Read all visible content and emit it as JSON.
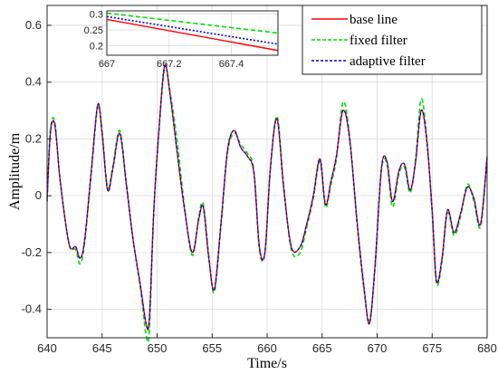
{
  "chart_data": {
    "type": "line",
    "title": "",
    "xlabel": "Time/s",
    "ylabel": "Amplitude/m",
    "xlim": [
      640,
      680
    ],
    "ylim": [
      -0.5,
      0.67
    ],
    "x_ticks": [
      640,
      645,
      650,
      655,
      660,
      665,
      670,
      675,
      680
    ],
    "y_ticks": [
      -0.4,
      -0.2,
      0,
      0.2,
      0.4,
      0.6
    ],
    "x_tick_labels": [
      "640",
      "645",
      "650",
      "655",
      "660",
      "665",
      "670",
      "675",
      "680"
    ],
    "y_tick_labels": [
      "-0.4",
      "-0.2",
      "0",
      "0.2",
      "0.4",
      "0.6"
    ],
    "grid": true,
    "legend_position": "top-right",
    "series": [
      {
        "name": "base line",
        "color": "#ff0000",
        "dash": "solid",
        "x": [
          640,
          640.3,
          640.7,
          641.2,
          642,
          642.6,
          643,
          643.4,
          644,
          644.6,
          645,
          645.5,
          646,
          646.6,
          647.2,
          647.8,
          648.5,
          649,
          649.3,
          649.7,
          650.2,
          650.7,
          651.2,
          651.8,
          652.5,
          653.2,
          653.8,
          654.2,
          654.7,
          655.2,
          655.8,
          656.4,
          657,
          657.6,
          658.2,
          658.8,
          659.3,
          659.8,
          660.3,
          660.9,
          661.5,
          662.2,
          663,
          663.6,
          664.2,
          664.8,
          665.3,
          665.8,
          666.3,
          666.9,
          667.5,
          668.2,
          668.8,
          669.3,
          669.8,
          670.4,
          670.9,
          671.4,
          672,
          672.5,
          673,
          673.5,
          674,
          674.5,
          675,
          675.4,
          675.9,
          676.4,
          677,
          677.6,
          678.2,
          678.8,
          679.4,
          680
        ],
        "y": [
          -0.02,
          0.22,
          0.25,
          0.05,
          -0.17,
          -0.18,
          -0.22,
          -0.16,
          0.08,
          0.32,
          0.22,
          0.02,
          0.1,
          0.22,
          0.04,
          -0.15,
          -0.32,
          -0.45,
          -0.43,
          -0.05,
          0.25,
          0.46,
          0.35,
          0.16,
          -0.05,
          -0.2,
          -0.08,
          -0.04,
          -0.22,
          -0.33,
          -0.1,
          0.16,
          0.23,
          0.17,
          0.14,
          0.08,
          -0.18,
          -0.2,
          0.1,
          0.27,
          0.03,
          -0.18,
          -0.18,
          -0.1,
          0,
          0.13,
          -0.03,
          0.05,
          0.14,
          0.3,
          0.2,
          -0.1,
          -0.32,
          -0.45,
          -0.25,
          0.1,
          0.12,
          -0.02,
          0.09,
          0.11,
          0.02,
          0.12,
          0.3,
          0.2,
          -0.05,
          -0.3,
          -0.22,
          -0.05,
          -0.13,
          -0.06,
          0.03,
          -0.01,
          -0.1,
          0.14
        ]
      },
      {
        "name": "fixed filter",
        "color": "#00dd00",
        "dash": "dashed",
        "x": [
          640,
          640.3,
          640.7,
          641.2,
          642,
          642.6,
          643,
          643.4,
          644,
          644.6,
          645,
          645.5,
          646,
          646.6,
          647.2,
          647.8,
          648.5,
          649,
          649.3,
          649.7,
          650.2,
          650.7,
          651.2,
          651.8,
          652.5,
          653.2,
          653.8,
          654.2,
          654.7,
          655.2,
          655.8,
          656.4,
          657,
          657.6,
          658.2,
          658.8,
          659.3,
          659.8,
          660.3,
          660.9,
          661.5,
          662.2,
          663,
          663.6,
          664.2,
          664.8,
          665.3,
          665.8,
          666.3,
          666.9,
          667.5,
          668.2,
          668.8,
          669.3,
          669.8,
          670.4,
          670.9,
          671.4,
          672,
          672.5,
          673,
          673.5,
          674,
          674.5,
          675,
          675.4,
          675.9,
          676.4,
          677,
          677.6,
          678.2,
          678.8,
          679.4,
          680
        ],
        "y": [
          -0.01,
          0.23,
          0.26,
          0.05,
          -0.17,
          -0.19,
          -0.24,
          -0.17,
          0.07,
          0.31,
          0.23,
          0.03,
          0.11,
          0.23,
          0.05,
          -0.15,
          -0.33,
          -0.49,
          -0.47,
          -0.06,
          0.24,
          0.45,
          0.36,
          0.2,
          -0.04,
          -0.21,
          -0.07,
          -0.03,
          -0.21,
          -0.34,
          -0.11,
          0.15,
          0.22,
          0.18,
          0.15,
          0.09,
          -0.19,
          -0.2,
          0.09,
          0.28,
          0.04,
          -0.19,
          -0.2,
          -0.11,
          -0.01,
          0.12,
          -0.04,
          0.04,
          0.13,
          0.33,
          0.21,
          -0.11,
          -0.33,
          -0.44,
          -0.26,
          0.09,
          0.11,
          -0.04,
          0.08,
          0.1,
          0.01,
          0.13,
          0.34,
          0.21,
          -0.06,
          -0.31,
          -0.23,
          -0.06,
          -0.14,
          -0.07,
          0.04,
          -0.02,
          -0.11,
          0.13
        ]
      },
      {
        "name": "adaptive filter",
        "color": "#0000cc",
        "dash": "dashed",
        "x": [
          640,
          640.3,
          640.7,
          641.2,
          642,
          642.6,
          643,
          643.4,
          644,
          644.6,
          645,
          645.5,
          646,
          646.6,
          647.2,
          647.8,
          648.5,
          649,
          649.3,
          649.7,
          650.2,
          650.7,
          651.2,
          651.8,
          652.5,
          653.2,
          653.8,
          654.2,
          654.7,
          655.2,
          655.8,
          656.4,
          657,
          657.6,
          658.2,
          658.8,
          659.3,
          659.8,
          660.3,
          660.9,
          661.5,
          662.2,
          663,
          663.6,
          664.2,
          664.8,
          665.3,
          665.8,
          666.3,
          666.9,
          667.5,
          668.2,
          668.8,
          669.3,
          669.8,
          670.4,
          670.9,
          671.4,
          672,
          672.5,
          673,
          673.5,
          674,
          674.5,
          675,
          675.4,
          675.9,
          676.4,
          677,
          677.6,
          678.2,
          678.8,
          679.4,
          680
        ],
        "y": [
          -0.02,
          0.22,
          0.25,
          0.05,
          -0.17,
          -0.18,
          -0.22,
          -0.16,
          0.08,
          0.32,
          0.22,
          0.02,
          0.1,
          0.22,
          0.04,
          -0.15,
          -0.32,
          -0.45,
          -0.43,
          -0.05,
          0.25,
          0.46,
          0.35,
          0.16,
          -0.05,
          -0.2,
          -0.08,
          -0.04,
          -0.22,
          -0.33,
          -0.1,
          0.16,
          0.23,
          0.17,
          0.14,
          0.08,
          -0.18,
          -0.2,
          0.1,
          0.27,
          0.03,
          -0.18,
          -0.18,
          -0.1,
          0,
          0.13,
          -0.03,
          0.05,
          0.14,
          0.3,
          0.2,
          -0.1,
          -0.32,
          -0.45,
          -0.25,
          0.1,
          0.12,
          -0.02,
          0.09,
          0.11,
          0.02,
          0.12,
          0.3,
          0.2,
          -0.05,
          -0.3,
          -0.22,
          -0.05,
          -0.13,
          -0.06,
          0.03,
          -0.01,
          -0.1,
          0.14
        ]
      }
    ],
    "inset": {
      "xlim": [
        667,
        667.55
      ],
      "ylim": [
        0.17,
        0.31
      ],
      "x_ticks": [
        667,
        667.2,
        667.4
      ],
      "y_ticks": [
        0.2,
        0.25,
        0.3
      ],
      "x_tick_labels": [
        "667",
        "667.2",
        "667.4"
      ],
      "y_tick_labels": [
        "0.2",
        "0.25",
        "0.3"
      ],
      "series": [
        {
          "name": "base line",
          "x": [
            667,
            667.55
          ],
          "y": [
            0.283,
            0.185
          ]
        },
        {
          "name": "fixed filter",
          "x": [
            667,
            667.55
          ],
          "y": [
            0.303,
            0.24
          ]
        },
        {
          "name": "adaptive filter",
          "x": [
            667,
            667.55
          ],
          "y": [
            0.292,
            0.205
          ]
        }
      ]
    }
  }
}
